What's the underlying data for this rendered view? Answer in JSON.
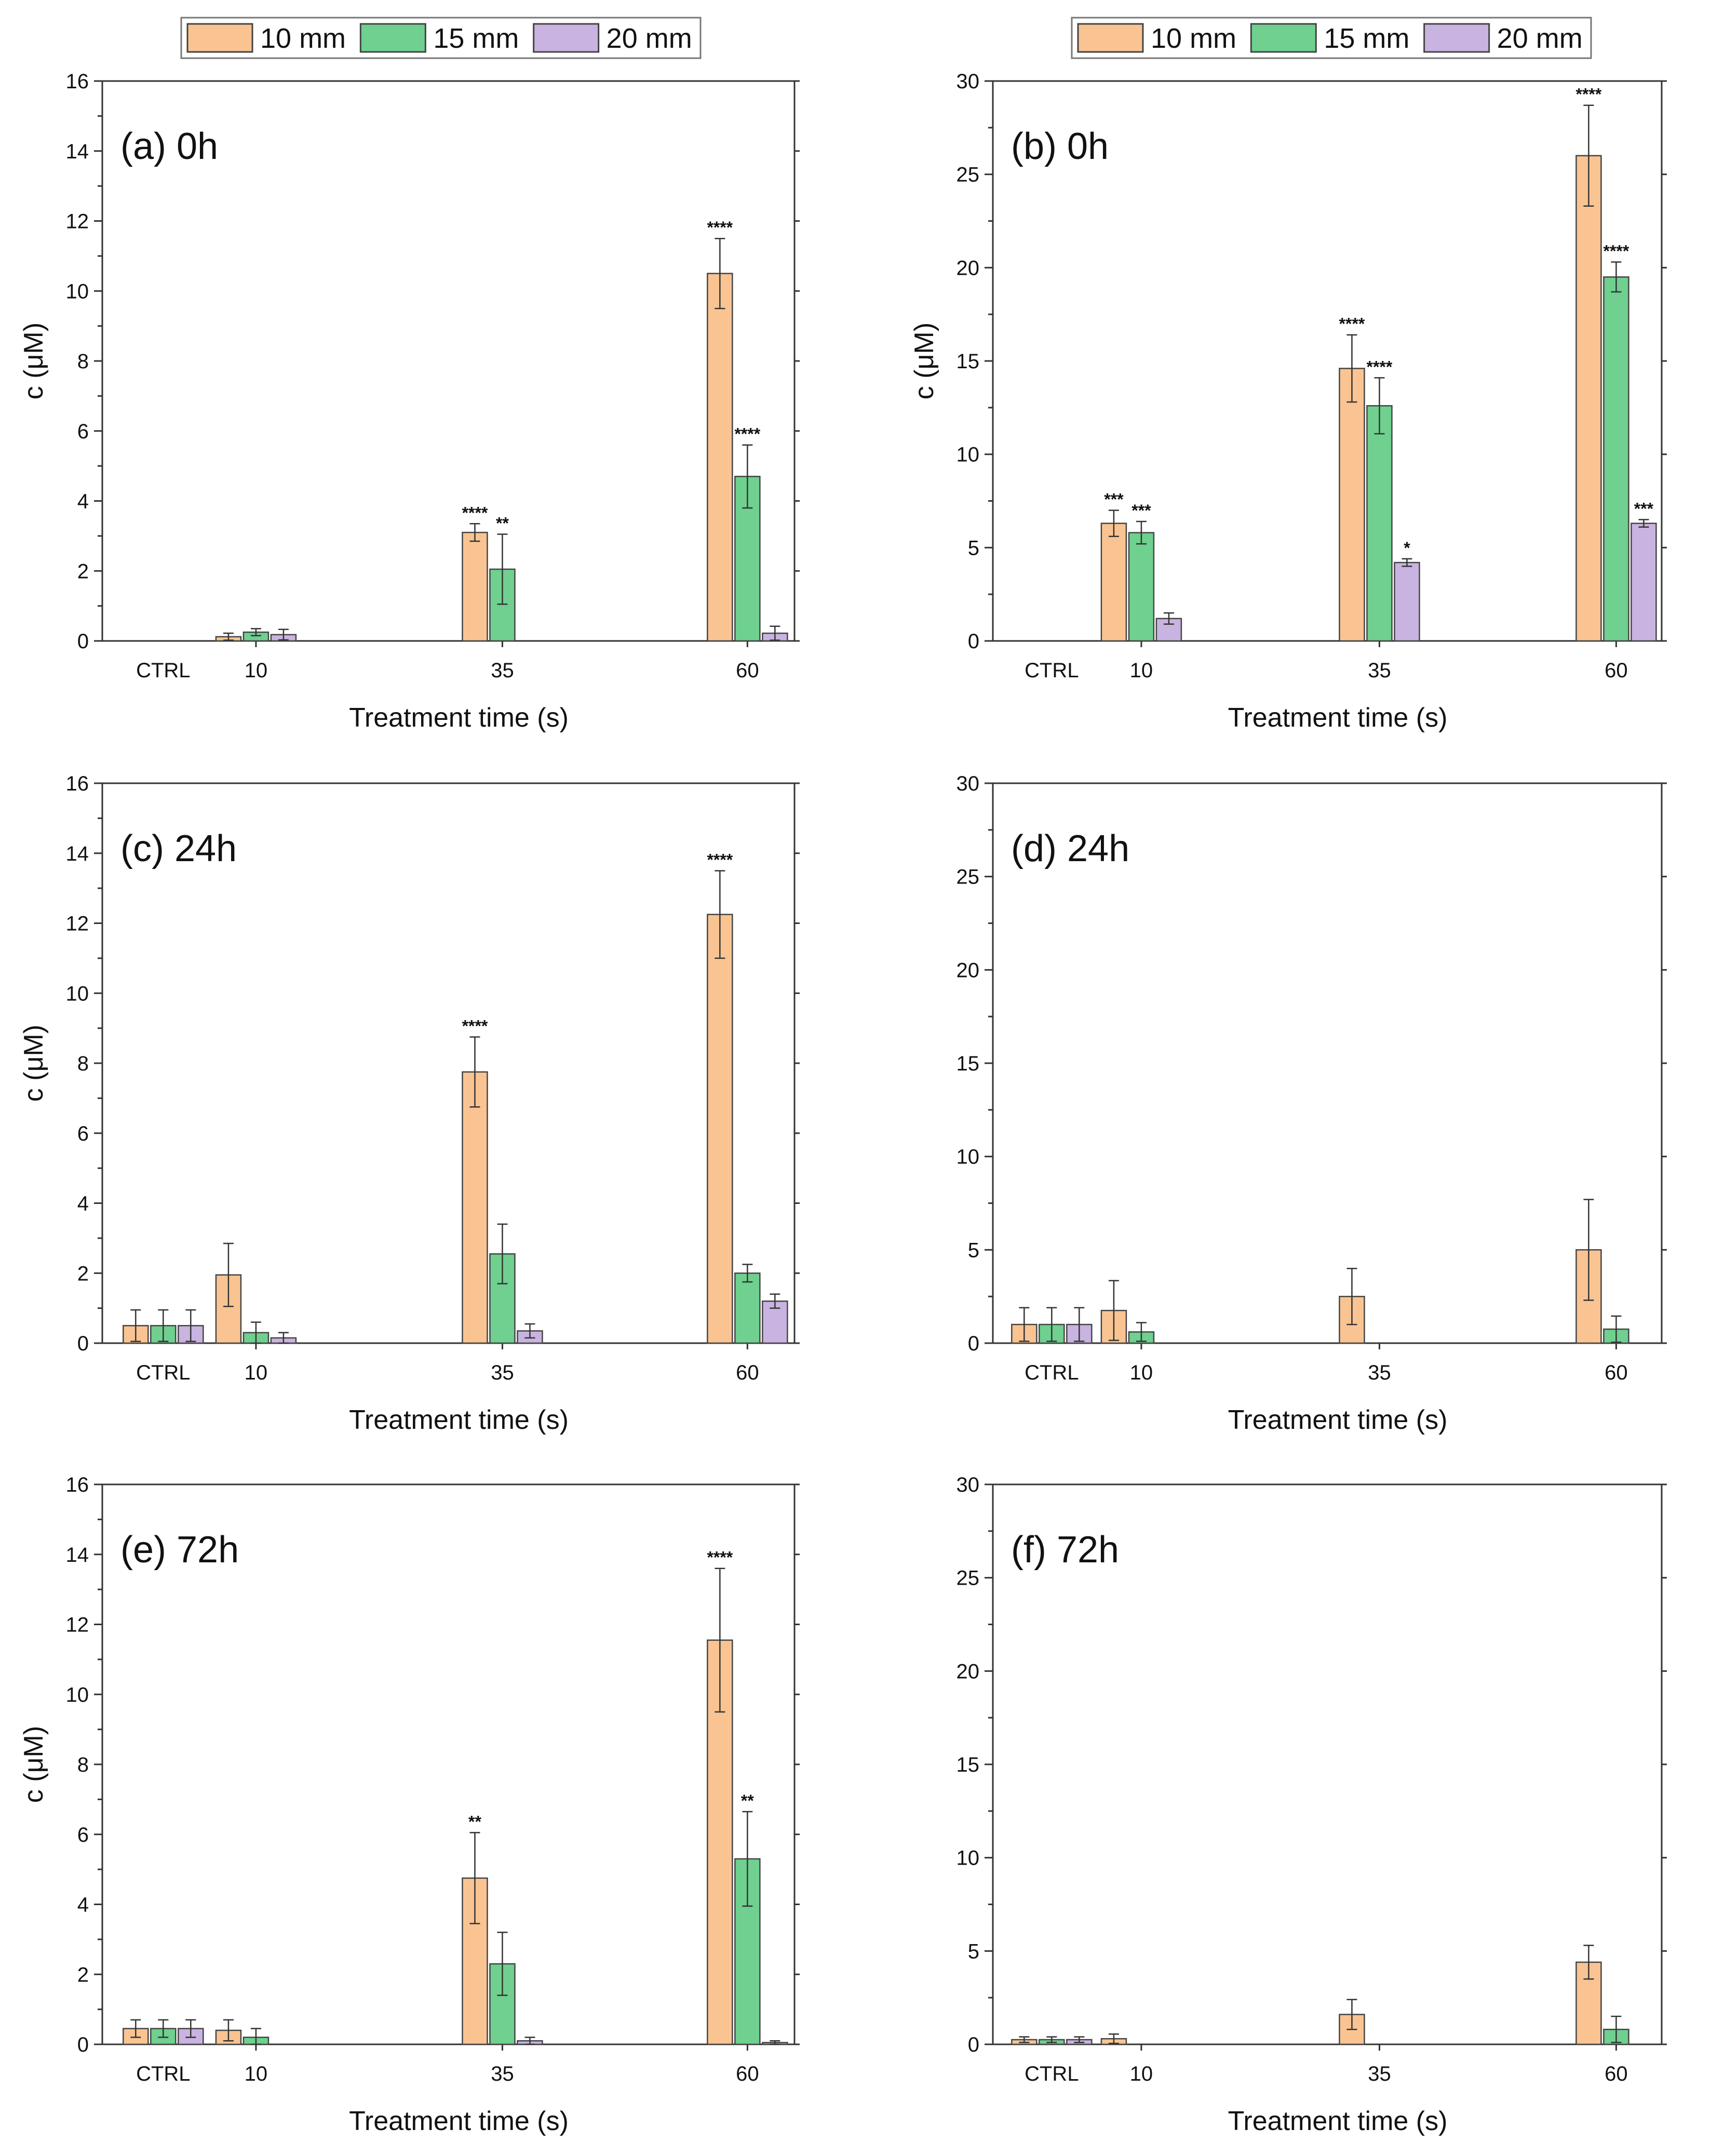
{
  "colors": {
    "10 mm": "#f9c492",
    "15 mm": "#6fd08f",
    "20 mm": "#c9b3e0"
  },
  "series_names": [
    "10 mm",
    "15 mm",
    "20 mm"
  ],
  "xlabel": "Treatment time (s)",
  "ylabel": "c (μM)",
  "chart_data": [
    {
      "id": "a",
      "type": "bar",
      "title": "(a) 0h",
      "show_legend": true,
      "categories": [
        "CTRL",
        "10",
        "35",
        "60"
      ],
      "ylim": [
        0,
        16
      ],
      "yticks": [
        0,
        2,
        4,
        6,
        8,
        10,
        12,
        14,
        16
      ],
      "xlabel": "Treatment time (s)",
      "ylabel": "c (μM)",
      "series": [
        {
          "name": "10 mm",
          "values": [
            0,
            0.12,
            3.1,
            10.5
          ],
          "errors": [
            0,
            0.1,
            0.25,
            1.0
          ],
          "sig": [
            "",
            "",
            "****",
            "****"
          ]
        },
        {
          "name": "15 mm",
          "values": [
            0,
            0.25,
            2.05,
            4.7
          ],
          "errors": [
            0,
            0.1,
            1.0,
            0.9
          ],
          "sig": [
            "",
            "",
            "**",
            "****"
          ]
        },
        {
          "name": "20 mm",
          "values": [
            0,
            0.18,
            0,
            0.22
          ],
          "errors": [
            0,
            0.15,
            0,
            0.2
          ],
          "sig": [
            "",
            "",
            "",
            ""
          ]
        }
      ]
    },
    {
      "id": "b",
      "type": "bar",
      "title": "(b) 0h",
      "show_legend": true,
      "categories": [
        "CTRL",
        "10",
        "35",
        "60"
      ],
      "ylim": [
        0,
        30
      ],
      "yticks": [
        0,
        5,
        10,
        15,
        20,
        25,
        30
      ],
      "xlabel": "Treatment time (s)",
      "ylabel": "c (μM)",
      "series": [
        {
          "name": "10 mm",
          "values": [
            0,
            6.3,
            14.6,
            26.0
          ],
          "errors": [
            0,
            0.7,
            1.8,
            2.7
          ],
          "sig": [
            "",
            "***",
            "****",
            "****"
          ]
        },
        {
          "name": "15 mm",
          "values": [
            0,
            5.8,
            12.6,
            19.5
          ],
          "errors": [
            0,
            0.6,
            1.5,
            0.8
          ],
          "sig": [
            "",
            "***",
            "****",
            "****"
          ]
        },
        {
          "name": "20 mm",
          "values": [
            0,
            1.2,
            4.2,
            6.3
          ],
          "errors": [
            0,
            0.3,
            0.2,
            0.2
          ],
          "sig": [
            "",
            "",
            "*",
            "***"
          ]
        }
      ]
    },
    {
      "id": "c",
      "type": "bar",
      "title": "(c) 24h",
      "show_legend": false,
      "categories": [
        "CTRL",
        "10",
        "35",
        "60"
      ],
      "ylim": [
        0,
        16
      ],
      "yticks": [
        0,
        2,
        4,
        6,
        8,
        10,
        12,
        14,
        16
      ],
      "xlabel": "Treatment time (s)",
      "ylabel": "c (μM)",
      "series": [
        {
          "name": "10 mm",
          "values": [
            0.5,
            1.95,
            7.75,
            12.25
          ],
          "errors": [
            0.45,
            0.9,
            1.0,
            1.25
          ],
          "sig": [
            "",
            "",
            "****",
            "****"
          ]
        },
        {
          "name": "15 mm",
          "values": [
            0.5,
            0.3,
            2.55,
            2.0
          ],
          "errors": [
            0.45,
            0.3,
            0.85,
            0.25
          ],
          "sig": [
            "",
            "",
            "",
            ""
          ]
        },
        {
          "name": "20 mm",
          "values": [
            0.5,
            0.15,
            0.35,
            1.2
          ],
          "errors": [
            0.45,
            0.15,
            0.2,
            0.2
          ],
          "sig": [
            "",
            "",
            "",
            ""
          ]
        }
      ]
    },
    {
      "id": "d",
      "type": "bar",
      "title": "(d) 24h",
      "show_legend": false,
      "categories": [
        "CTRL",
        "10",
        "35",
        "60"
      ],
      "ylim": [
        0,
        30
      ],
      "yticks": [
        0,
        5,
        10,
        15,
        20,
        25,
        30
      ],
      "xlabel": "Treatment time (s)",
      "ylabel": "",
      "series": [
        {
          "name": "10 mm",
          "values": [
            1.0,
            1.75,
            2.5,
            5.0
          ],
          "errors": [
            0.9,
            1.6,
            1.5,
            2.7
          ],
          "sig": [
            "",
            "",
            "",
            ""
          ]
        },
        {
          "name": "15 mm",
          "values": [
            1.0,
            0.6,
            0,
            0.75
          ],
          "errors": [
            0.9,
            0.5,
            0,
            0.7
          ],
          "sig": [
            "",
            "",
            "",
            ""
          ]
        },
        {
          "name": "20 mm",
          "values": [
            1.0,
            0,
            0,
            0
          ],
          "errors": [
            0.9,
            0,
            0,
            0
          ],
          "sig": [
            "",
            "",
            "",
            ""
          ]
        }
      ]
    },
    {
      "id": "e",
      "type": "bar",
      "title": "(e) 72h",
      "show_legend": false,
      "categories": [
        "CTRL",
        "10",
        "35",
        "60"
      ],
      "ylim": [
        0,
        16
      ],
      "yticks": [
        0,
        2,
        4,
        6,
        8,
        10,
        12,
        14,
        16
      ],
      "xlabel": "Treatment time (s)",
      "ylabel": "c (μM)",
      "series": [
        {
          "name": "10 mm",
          "values": [
            0.45,
            0.4,
            4.75,
            11.55
          ],
          "errors": [
            0.25,
            0.3,
            1.3,
            2.05
          ],
          "sig": [
            "",
            "",
            "**",
            "****"
          ]
        },
        {
          "name": "15 mm",
          "values": [
            0.45,
            0.2,
            2.3,
            5.3
          ],
          "errors": [
            0.25,
            0.25,
            0.9,
            1.35
          ],
          "sig": [
            "",
            "",
            "",
            "**"
          ]
        },
        {
          "name": "20 mm",
          "values": [
            0.45,
            0,
            0.1,
            0.05
          ],
          "errors": [
            0.25,
            0,
            0.1,
            0.05
          ],
          "sig": [
            "",
            "",
            "",
            ""
          ]
        }
      ]
    },
    {
      "id": "f",
      "type": "bar",
      "title": "(f) 72h",
      "show_legend": false,
      "categories": [
        "CTRL",
        "10",
        "35",
        "60"
      ],
      "ylim": [
        0,
        30
      ],
      "yticks": [
        0,
        5,
        10,
        15,
        20,
        25,
        30
      ],
      "xlabel": "Treatment time (s)",
      "ylabel": "",
      "series": [
        {
          "name": "10 mm",
          "values": [
            0.25,
            0.3,
            1.6,
            4.4
          ],
          "errors": [
            0.15,
            0.25,
            0.8,
            0.9
          ],
          "sig": [
            "",
            "",
            "",
            ""
          ]
        },
        {
          "name": "15 mm",
          "values": [
            0.25,
            0,
            0,
            0.8
          ],
          "errors": [
            0.15,
            0,
            0,
            0.7
          ],
          "sig": [
            "",
            "",
            "",
            ""
          ]
        },
        {
          "name": "20 mm",
          "values": [
            0.25,
            0,
            0,
            0
          ],
          "errors": [
            0.15,
            0,
            0,
            0
          ],
          "sig": [
            "",
            "",
            "",
            ""
          ]
        }
      ]
    }
  ]
}
